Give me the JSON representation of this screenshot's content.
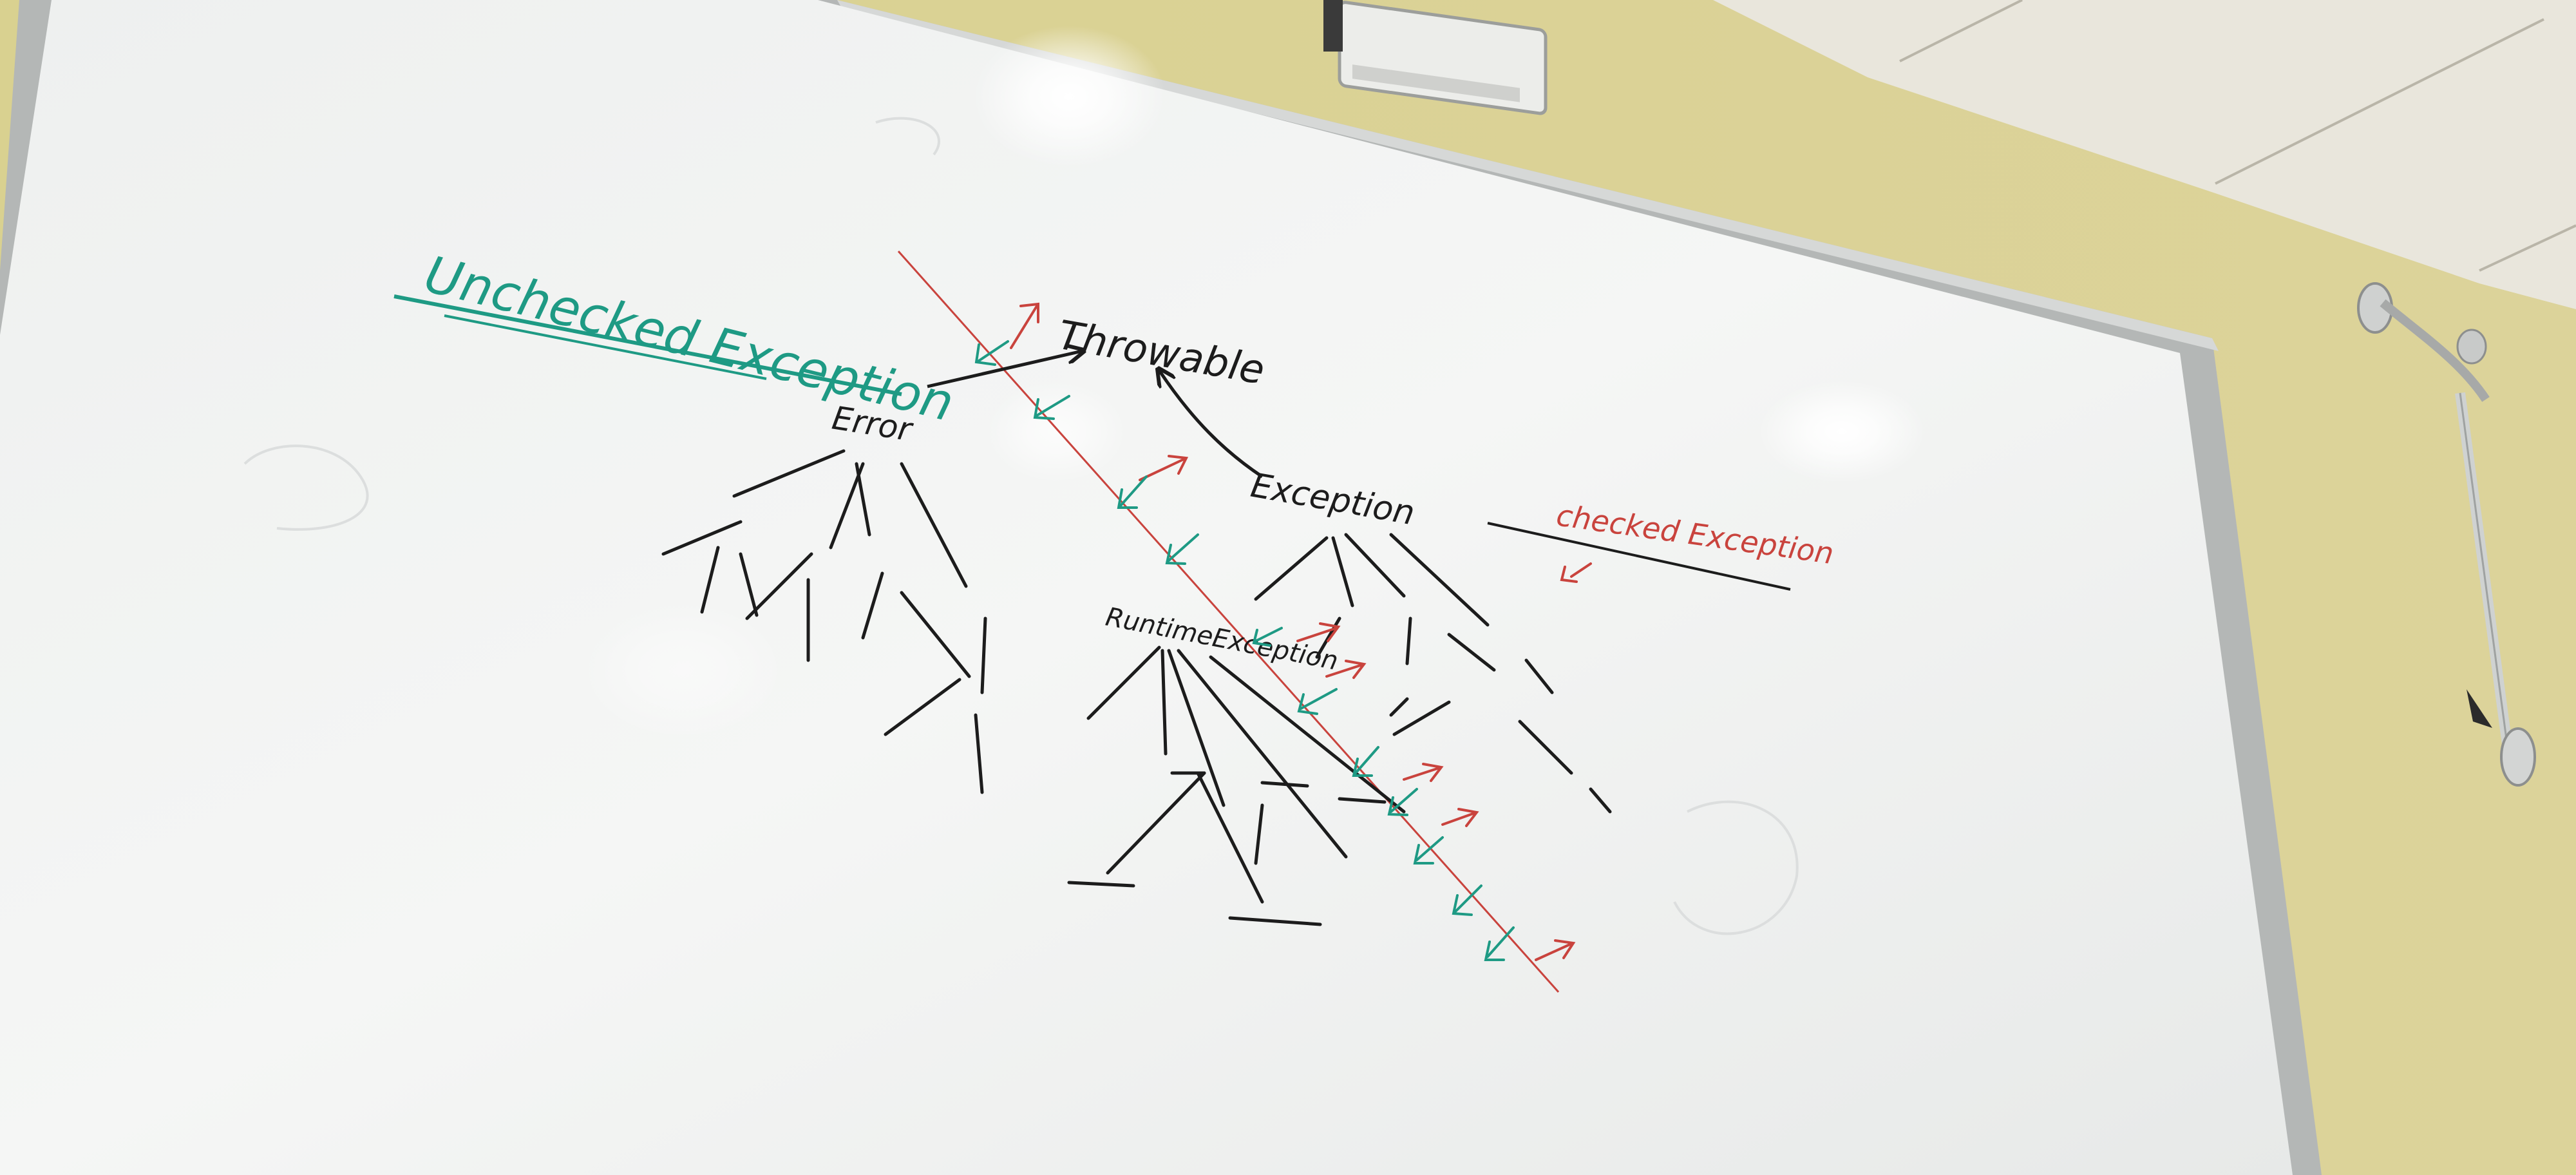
{
  "board": {
    "labels": {
      "unchecked": "Unchecked Exception",
      "throwable": "Throwable",
      "error": "Error",
      "exception": "Exception",
      "checked": "checked Exception",
      "runtime": "RuntimeException"
    }
  },
  "colors": {
    "wall": "#d8cf92",
    "ceiling": "#e9e6dc",
    "board_surface": "#f3f4f3",
    "board_frame": "#b4b7b6",
    "black_marker": "#1c1c1c",
    "teal_marker": "#1e9a84",
    "red_marker": "#c9433d"
  }
}
